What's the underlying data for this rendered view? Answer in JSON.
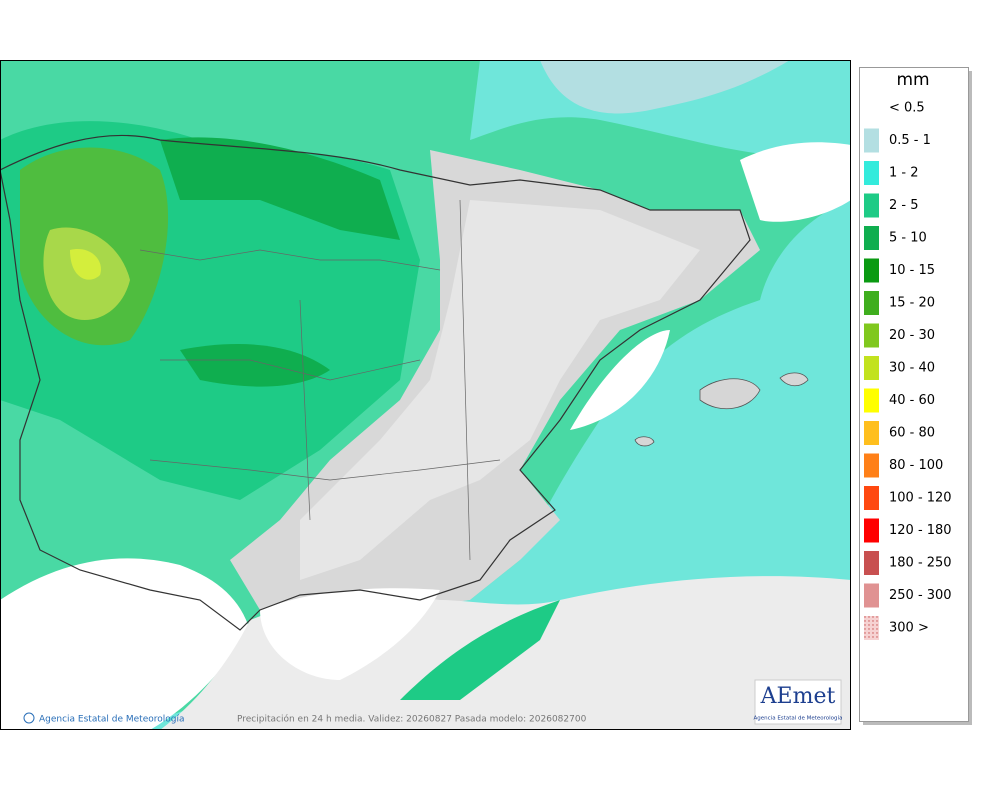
{
  "map": {
    "footer_left": "Agencia Estatal de Meteorología",
    "footer_center": "Precipitación en 24 h media. Validez: 20260827 Pasada modelo: 2026082700",
    "logo": "AEmet",
    "logo_subtitle": "Agencia Estatal de Meteorología"
  },
  "legend": {
    "title": "mm",
    "items": [
      {
        "label": "< 0.5"
      },
      {
        "label": "0.5 - 1",
        "color": "#b3dfe2"
      },
      {
        "label": "1 - 2",
        "color": "#33ebdc"
      },
      {
        "label": "2 - 5",
        "color": "#1ecb86"
      },
      {
        "label": "5 - 10",
        "color": "#0fae4f"
      },
      {
        "label": "10 - 15",
        "color": "#0a9a12"
      },
      {
        "label": "15 - 20",
        "color": "#3fae1e"
      },
      {
        "label": "20 - 30",
        "color": "#80c81e"
      },
      {
        "label": "30 - 40",
        "color": "#c2e21e"
      },
      {
        "label": "40 - 60",
        "color": "#ffff00"
      },
      {
        "label": "60 - 80",
        "color": "#ffbf1e"
      },
      {
        "label": "80 - 100",
        "color": "#ff8018"
      },
      {
        "label": "100 - 120",
        "color": "#ff4810"
      },
      {
        "label": "120 - 180",
        "color": "#ff0000"
      },
      {
        "label": "180 - 250",
        "color": "#c85050"
      },
      {
        "label": "250 - 300",
        "color": "#e09292"
      },
      {
        "label": "300 >",
        "color": "#f6d2d2",
        "dotted": true
      }
    ]
  }
}
